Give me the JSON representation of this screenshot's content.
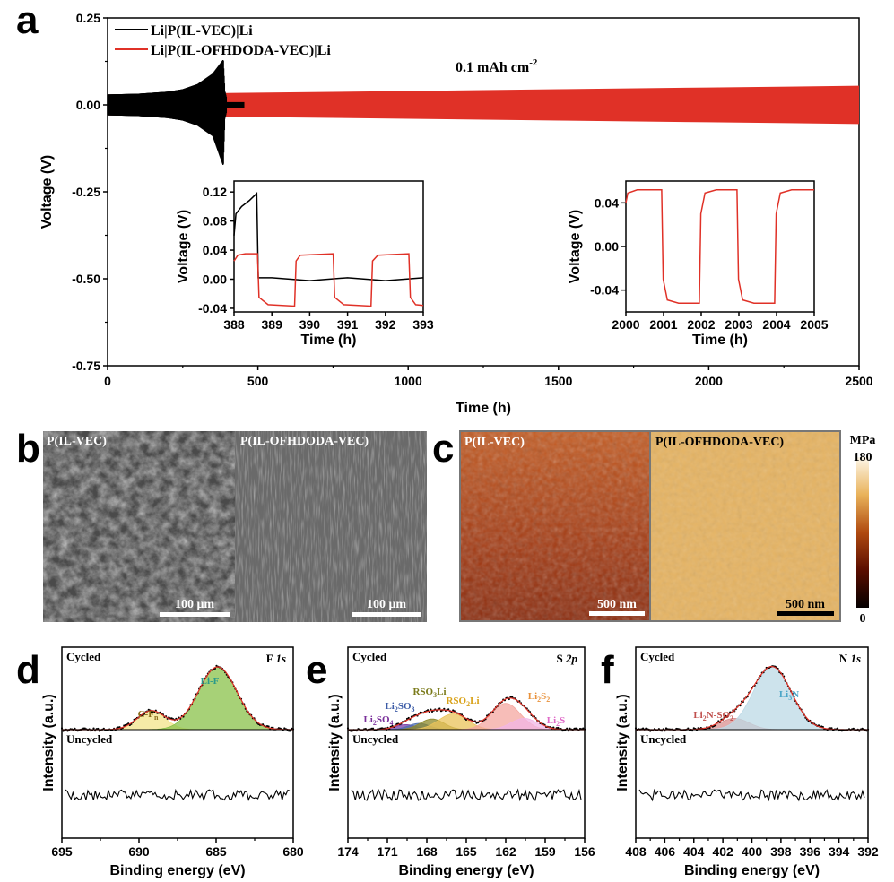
{
  "colors": {
    "black": "#000000",
    "red": "#e03127"
  },
  "chart_data": [
    {
      "panel": "a",
      "type": "line",
      "xlabel": "Time (h)",
      "ylabel": "Voltage (V)",
      "xlim": [
        0,
        2500
      ],
      "ylim": [
        -0.75,
        0.25
      ],
      "xticks": [
        0,
        500,
        1000,
        1500,
        2000,
        2500
      ],
      "yticks": [
        -0.75,
        -0.5,
        -0.25,
        0.0,
        0.25
      ],
      "xtick_labels": [
        "0",
        "500",
        "1000",
        "1500",
        "2000",
        "2500"
      ],
      "ytick_labels": [
        "-0.75",
        "-0.50",
        "-0.25",
        "0.00",
        "0.25"
      ],
      "annotation": "0.1 mAh cm",
      "annotation_sup": "-2",
      "legend_position": "top-left",
      "series": [
        {
          "name": "Li|P(IL-VEC)|Li",
          "color": "#000000",
          "envelope_x": [
            0,
            100,
            200,
            250,
            300,
            350,
            385,
            390,
            400,
            450
          ],
          "upper": [
            0.03,
            0.032,
            0.038,
            0.045,
            0.06,
            0.09,
            0.13,
            0.04,
            0.005,
            0.002
          ],
          "lower": [
            -0.03,
            -0.032,
            -0.038,
            -0.045,
            -0.06,
            -0.09,
            -0.175,
            -0.04,
            -0.005,
            -0.002
          ]
        },
        {
          "name": "Li|P(IL-OFHDODA-VEC)|Li",
          "color": "#e03127",
          "envelope_x": [
            0,
            500,
            1000,
            1500,
            2000,
            2500
          ],
          "upper": [
            0.03,
            0.035,
            0.04,
            0.045,
            0.05,
            0.055
          ],
          "lower": [
            -0.03,
            -0.035,
            -0.04,
            -0.045,
            -0.05,
            -0.055
          ]
        }
      ]
    },
    {
      "panel": "a-inset-1",
      "type": "line",
      "xlabel": "Time (h)",
      "ylabel": "Voltage (V)",
      "xlim": [
        388,
        393
      ],
      "ylim": [
        -0.045,
        0.135
      ],
      "xticks": [
        388,
        389,
        390,
        391,
        392,
        393
      ],
      "yticks": [
        -0.04,
        0.0,
        0.04,
        0.08,
        0.12
      ],
      "xtick_labels": [
        "388",
        "389",
        "390",
        "391",
        "392",
        "393"
      ],
      "ytick_labels": [
        "-0.04",
        "0.00",
        "0.04",
        "0.08",
        "0.12"
      ],
      "series": [
        {
          "color": "#000000",
          "x": [
            388.0,
            388.05,
            388.2,
            388.4,
            388.6,
            388.62,
            388.64,
            389.0,
            390.0,
            391.0,
            392.0,
            393.0
          ],
          "y": [
            0.06,
            0.09,
            0.1,
            0.108,
            0.118,
            0.06,
            0.002,
            0.002,
            -0.002,
            0.002,
            -0.002,
            0.002
          ]
        },
        {
          "color": "#e03127",
          "x": [
            388.0,
            388.1,
            388.3,
            388.62,
            388.66,
            388.9,
            389.6,
            389.64,
            389.75,
            390.62,
            390.66,
            390.9,
            391.62,
            391.66,
            391.8,
            392.62,
            392.66,
            392.8,
            393.0
          ],
          "y": [
            0.025,
            0.033,
            0.035,
            0.035,
            -0.025,
            -0.035,
            -0.037,
            0.025,
            0.033,
            0.035,
            -0.025,
            -0.035,
            -0.037,
            0.025,
            0.033,
            0.035,
            -0.025,
            -0.035,
            -0.036
          ]
        }
      ]
    },
    {
      "panel": "a-inset-2",
      "type": "line",
      "xlabel": "Time (h)",
      "ylabel": "Voltage (V)",
      "xlim": [
        2000,
        2005
      ],
      "ylim": [
        -0.06,
        0.06
      ],
      "xticks": [
        2000,
        2001,
        2002,
        2003,
        2004,
        2005
      ],
      "yticks": [
        -0.04,
        0.0,
        0.04
      ],
      "xtick_labels": [
        "2000",
        "2001",
        "2002",
        "2003",
        "2004",
        "2005"
      ],
      "ytick_labels": [
        "-0.04",
        "0.00",
        "0.04"
      ],
      "series": [
        {
          "color": "#e03127",
          "x": [
            2000.0,
            2000.05,
            2000.3,
            2000.95,
            2000.99,
            2001.1,
            2001.4,
            2001.95,
            2001.99,
            2002.1,
            2002.4,
            2002.95,
            2002.99,
            2003.1,
            2003.4,
            2003.95,
            2003.99,
            2004.1,
            2004.4,
            2005.0
          ],
          "y": [
            0.04,
            0.049,
            0.052,
            0.052,
            -0.03,
            -0.049,
            -0.052,
            -0.052,
            0.03,
            0.049,
            0.052,
            0.052,
            -0.03,
            -0.049,
            -0.052,
            -0.052,
            0.03,
            0.049,
            0.052,
            0.052
          ]
        }
      ]
    },
    {
      "panel": "d",
      "type": "line",
      "title": "F 1s",
      "xlabel": "Binding energy (eV)",
      "ylabel": "Intensity (a.u.)",
      "xlim": [
        695,
        680
      ],
      "xticks": [
        695,
        690,
        685,
        680
      ],
      "xtick_labels": [
        "695",
        "690",
        "685",
        "680"
      ],
      "top_label": "Cycled",
      "bottom_label": "Uncycled",
      "peaks": [
        {
          "label": "C-F",
          "sub": "n",
          "center": 689.2,
          "height": 0.3,
          "width": 0.9,
          "color": "#f3e48a",
          "label_color": "#8a6d1a"
        },
        {
          "label": "Li-F",
          "sub": "",
          "center": 684.9,
          "height": 1.0,
          "width": 1.25,
          "color": "#8ac24a",
          "label_color": "#2a9a8a"
        }
      ]
    },
    {
      "panel": "e",
      "type": "line",
      "title": "S 2p",
      "xlabel": "Binding energy (eV)",
      "ylabel": "Intensity (a.u.)",
      "xlim": [
        174,
        156
      ],
      "xticks": [
        174,
        171,
        168,
        165,
        162,
        159,
        156
      ],
      "xtick_labels": [
        "174",
        "171",
        "168",
        "165",
        "162",
        "159",
        "156"
      ],
      "top_label": "Cycled",
      "bottom_label": "Uncycled",
      "peaks": [
        {
          "label": "Li",
          "sub": "2",
          "label_tail": "SO",
          "sub2": "4",
          "center": 169.6,
          "height": 0.08,
          "width": 0.8,
          "color": "#7a3fa8",
          "label_color": "#7a2f9a"
        },
        {
          "label": "Li",
          "sub": "2",
          "label_tail": "SO",
          "sub2": "3",
          "center": 168.6,
          "height": 0.1,
          "width": 0.8,
          "color": "#4e6fb0",
          "label_color": "#3a5aa6"
        },
        {
          "label": "RSO",
          "sub": "3",
          "label_tail": "Li",
          "sub2": "",
          "center": 167.6,
          "height": 0.17,
          "width": 0.9,
          "color": "#8e8a2a",
          "label_color": "#7a7a1a"
        },
        {
          "label": "RSO",
          "sub": "2",
          "label_tail": "Li",
          "sub2": "",
          "center": 166.0,
          "height": 0.25,
          "width": 1.1,
          "color": "#e9c35a",
          "label_color": "#d9a21a"
        },
        {
          "label": "Li",
          "sub": "2",
          "label_tail": "S",
          "sub2": "2",
          "center": 162.0,
          "height": 0.42,
          "width": 1.1,
          "color": "#f4a7a0",
          "label_color": "#e8913a"
        },
        {
          "label": "Li",
          "sub": "2",
          "label_tail": "S",
          "sub2": "",
          "center": 160.6,
          "height": 0.18,
          "width": 1.0,
          "color": "#f2b6e6",
          "label_color": "#e06ac8"
        }
      ]
    },
    {
      "panel": "f",
      "type": "line",
      "title": "N 1s",
      "xlabel": "Binding energy (eV)",
      "ylabel": "Intensity (a.u.)",
      "xlim": [
        408,
        392
      ],
      "xticks": [
        408,
        406,
        404,
        402,
        400,
        398,
        396,
        394,
        392
      ],
      "xtick_labels": [
        "408",
        "406",
        "404",
        "402",
        "400",
        "398",
        "396",
        "394",
        "392"
      ],
      "top_label": "Cycled",
      "bottom_label": "Uncycled",
      "peaks": [
        {
          "label": "Li",
          "sub": "2",
          "label_tail": "N-SO",
          "sub2": "2",
          "sup": "-",
          "center": 401.2,
          "height": 0.18,
          "width": 1.0,
          "color": "#d99090",
          "label_color": "#c0504d"
        },
        {
          "label": "Li",
          "sub": "3",
          "label_tail": "N",
          "sub2": "",
          "center": 398.6,
          "height": 1.0,
          "width": 1.3,
          "color": "#bcd9e6",
          "label_color": "#4aa6c8"
        }
      ]
    }
  ],
  "panels": {
    "a": {
      "letter": "a"
    },
    "b": {
      "letter": "b",
      "left_label": "P(IL-VEC)",
      "right_label": "P(IL-OFHDODA-VEC)",
      "scale_left": "100 μm",
      "scale_right": "100 μm"
    },
    "c": {
      "letter": "c",
      "left_label": "P(IL-VEC)",
      "right_label": "P(IL-OFHDODA-VEC)",
      "scale_left": "500 nm",
      "scale_right": "500 nm",
      "colorbar_unit": "MPa",
      "colorbar_max": "180",
      "colorbar_min": "0"
    },
    "d": {
      "letter": "d"
    },
    "e": {
      "letter": "e"
    },
    "f": {
      "letter": "f"
    }
  }
}
